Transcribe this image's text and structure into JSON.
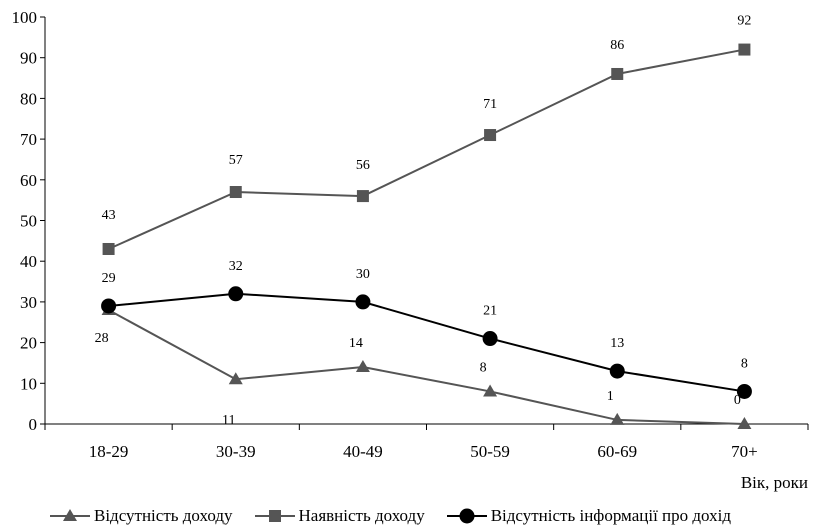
{
  "chart_data": {
    "type": "line",
    "title": "",
    "xlabel": "Вік, роки",
    "ylabel": "",
    "categories": [
      "18-29",
      "30-39",
      "40-49",
      "50-59",
      "60-69",
      "70+"
    ],
    "ylim": [
      0,
      100
    ],
    "yticks": [
      0,
      10,
      20,
      30,
      40,
      50,
      60,
      70,
      80,
      90,
      100
    ],
    "grid": false,
    "legend_position": "bottom",
    "series": [
      {
        "name": "Відсутність доходу",
        "values": [
          28,
          11,
          14,
          8,
          1,
          0
        ],
        "marker": "triangle",
        "color": "#555555"
      },
      {
        "name": "Наявність доходу",
        "values": [
          43,
          57,
          56,
          71,
          86,
          92
        ],
        "marker": "square",
        "color": "#555555"
      },
      {
        "name": "Відсутність інформації про дохід",
        "values": [
          29,
          32,
          30,
          21,
          13,
          8
        ],
        "marker": "circle",
        "color": "#000000"
      }
    ]
  }
}
